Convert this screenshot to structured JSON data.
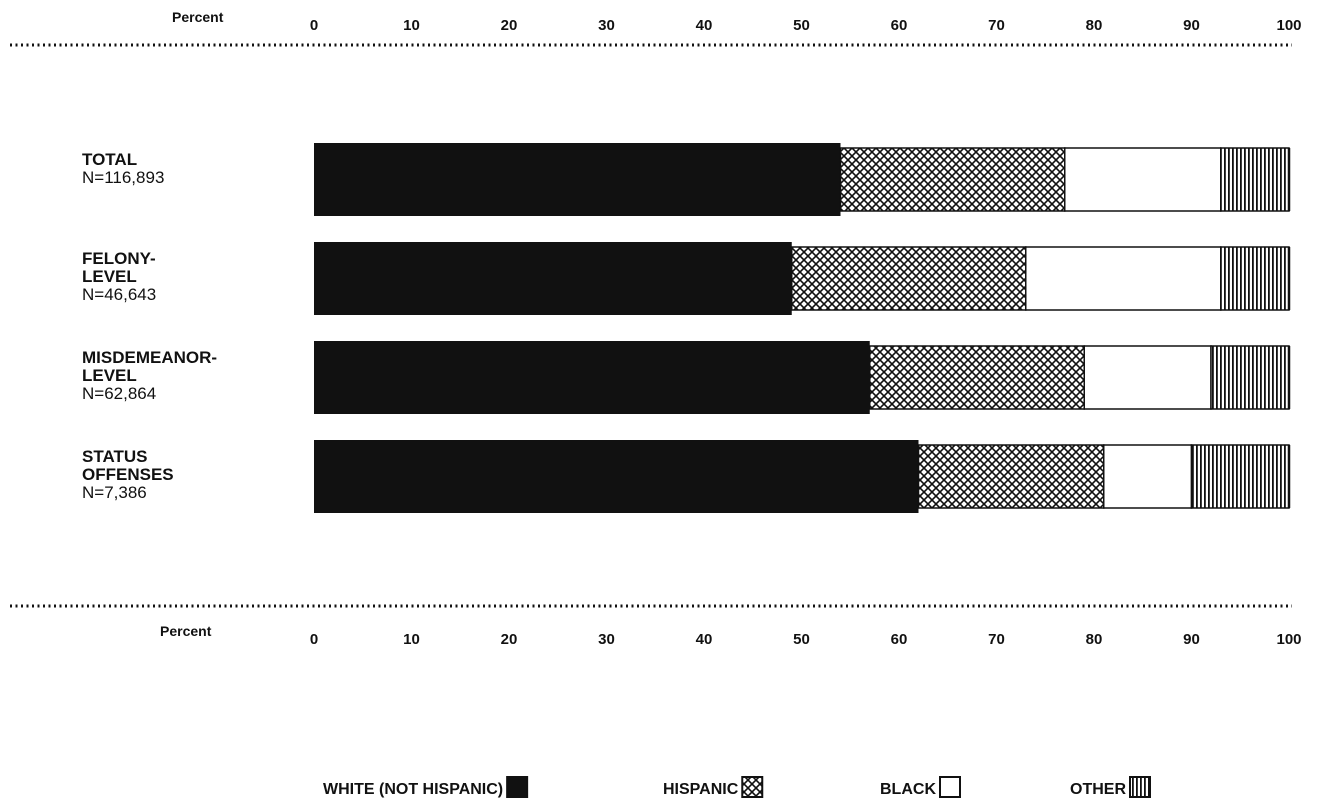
{
  "chart_data": {
    "type": "bar",
    "orientation": "horizontal",
    "stacked": true,
    "axis_title": "Percent",
    "xlim": [
      0,
      100
    ],
    "ticks": [
      "0",
      "10",
      "20",
      "30",
      "40",
      "50",
      "60",
      "70",
      "80",
      "90",
      "100"
    ],
    "categories": [
      {
        "lines": [
          "TOTAL"
        ],
        "n": "N=116,893"
      },
      {
        "lines": [
          "FELONY-",
          "LEVEL"
        ],
        "n": "N=46,643"
      },
      {
        "lines": [
          "MISDEMEANOR-",
          "LEVEL"
        ],
        "n": "N=62,864"
      },
      {
        "lines": [
          "STATUS",
          "OFFENSES"
        ],
        "n": "N=7,386"
      }
    ],
    "series": [
      {
        "name": "WHITE (NOT HISPANIC)",
        "pattern": "solid",
        "values": [
          54,
          49,
          57,
          62
        ]
      },
      {
        "name": "HISPANIC",
        "pattern": "crosshatch",
        "values": [
          23,
          24,
          22,
          19
        ]
      },
      {
        "name": "BLACK",
        "pattern": "blank",
        "values": [
          16,
          20,
          13,
          9
        ]
      },
      {
        "name": "OTHER",
        "pattern": "vertical-lines",
        "values": [
          7,
          7,
          8,
          10
        ]
      }
    ],
    "legend_position": "bottom",
    "colors": {
      "ink": "#111111",
      "background": "#ffffff"
    }
  }
}
